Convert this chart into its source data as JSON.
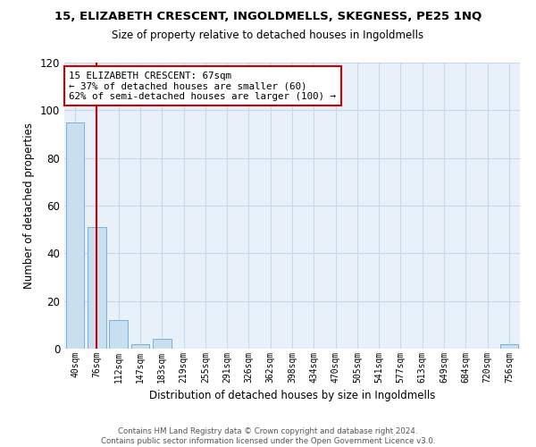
{
  "title": "15, ELIZABETH CRESCENT, INGOLDMELLS, SKEGNESS, PE25 1NQ",
  "subtitle": "Size of property relative to detached houses in Ingoldmells",
  "xlabel": "Distribution of detached houses by size in Ingoldmells",
  "ylabel": "Number of detached properties",
  "bar_labels": [
    "40sqm",
    "76sqm",
    "112sqm",
    "147sqm",
    "183sqm",
    "219sqm",
    "255sqm",
    "291sqm",
    "326sqm",
    "362sqm",
    "398sqm",
    "434sqm",
    "470sqm",
    "505sqm",
    "541sqm",
    "577sqm",
    "613sqm",
    "649sqm",
    "684sqm",
    "720sqm",
    "756sqm"
  ],
  "bar_heights": [
    95,
    51,
    12,
    2,
    4,
    0,
    0,
    0,
    0,
    0,
    0,
    0,
    0,
    0,
    0,
    0,
    0,
    0,
    0,
    0,
    2
  ],
  "bar_color": "#c8dff0",
  "bar_edge_color": "#7aafd4",
  "ylim": [
    0,
    120
  ],
  "yticks": [
    0,
    20,
    40,
    60,
    80,
    100,
    120
  ],
  "grid_color": "#c5d8ec",
  "bg_color": "#e8f1f9",
  "annotation_title": "15 ELIZABETH CRESCENT: 67sqm",
  "annotation_line1": "← 37% of detached houses are smaller (60)",
  "annotation_line2": "62% of semi-detached houses are larger (100) →",
  "annotation_box_color": "#ffffff",
  "annotation_box_edge": "#cc0000",
  "property_line_color": "#cc0000",
  "property_line_x": 0.975,
  "footer_line1": "Contains HM Land Registry data © Crown copyright and database right 2024.",
  "footer_line2": "Contains public sector information licensed under the Open Government Licence v3.0."
}
